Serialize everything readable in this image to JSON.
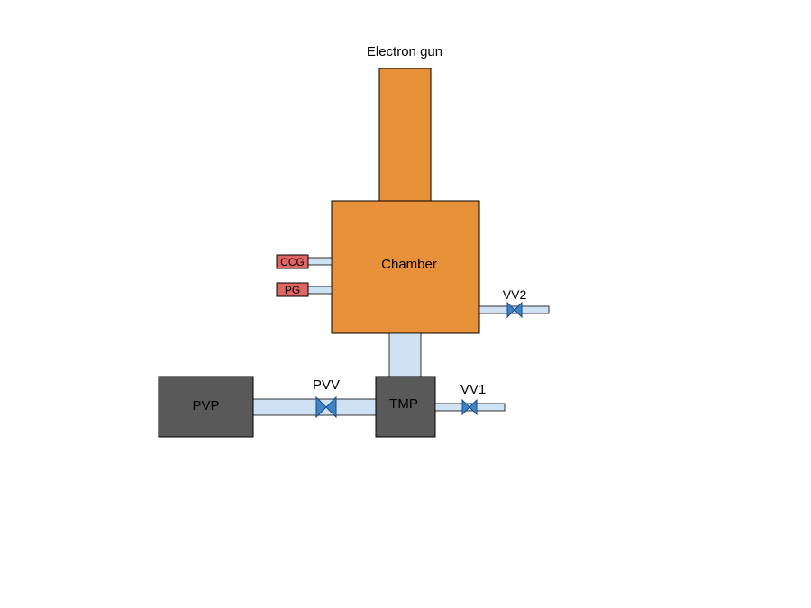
{
  "diagram": {
    "labels": {
      "electron_gun": "Electron gun",
      "chamber": "Chamber",
      "ccg": "CCG",
      "pg": "PG",
      "vv2": "VV2",
      "vv1": "VV1",
      "pvv": "PVV",
      "pvp": "PVP",
      "tmp": "TMP"
    },
    "colors": {
      "chamber_fill": "#e8913a",
      "pump_fill": "#595959",
      "pipe_fill": "#cfe2f3",
      "valve_fill": "#3d85c6",
      "gauge_fill": "#e06666",
      "outline": "#000000"
    }
  }
}
